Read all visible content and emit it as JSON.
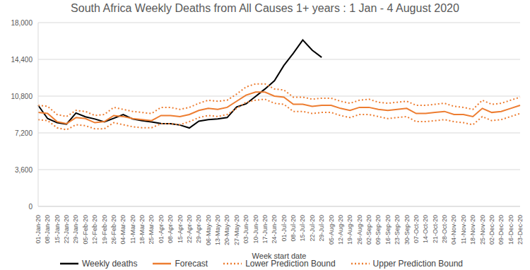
{
  "chart_data": {
    "type": "line",
    "title": "South Africa Weekly Deaths from All Causes 1+ years : 1 Jan  - 4 August 2020",
    "x_label": "Week start date",
    "categories": [
      "01-Jan-20",
      "08-Jan-20",
      "15-Jan-20",
      "22-Jan-20",
      "29-Jan-20",
      "05-Feb-20",
      "12-Feb-20",
      "19-Feb-20",
      "26-Feb-20",
      "04-Mar-20",
      "11-Mar-20",
      "18-Mar-20",
      "25-Mar-20",
      "01-Apr-20",
      "08-Apr-20",
      "15-Apr-20",
      "22-Apr-20",
      "29-Apr-20",
      "06-May-20",
      "13-May-20",
      "20-May-20",
      "27-May-20",
      "03-Jun-20",
      "10-Jun-20",
      "17-Jun-20",
      "24-Jun-20",
      "01-Jul-20",
      "08-Jul-20",
      "15-Jul-20",
      "22-Jul-20",
      "29-Jul-20",
      "05-Aug-20",
      "12-Aug-20",
      "19-Aug-20",
      "26-Aug-20",
      "02-Sep-20",
      "09-Sep-20",
      "16-Sep-20",
      "23-Sep-20",
      "30-Sep-20",
      "07-Oct-20",
      "14-Oct-20",
      "21-Oct-20",
      "28-Oct-20",
      "04-Nov-20",
      "11-Nov-20",
      "18-Nov-20",
      "25-Nov-20",
      "02-Dec-20",
      "09-Dec-20",
      "16-Dec-20",
      "23-Dec-20"
    ],
    "series": [
      {
        "name": "Weekly deaths",
        "color": "#000000",
        "line_style": "solid",
        "marker": "none",
        "values": [
          9900,
          8600,
          8200,
          8050,
          9150,
          8780,
          8560,
          8270,
          8630,
          9000,
          8560,
          8400,
          8270,
          8120,
          8100,
          7970,
          7680,
          8340,
          8490,
          8560,
          8700,
          9740,
          10040,
          10770,
          11500,
          12300,
          13800,
          15000,
          16300,
          15300,
          14600,
          null,
          null,
          null,
          null,
          null,
          null,
          null,
          null,
          null,
          null,
          null,
          null,
          null,
          null,
          null,
          null,
          null,
          null,
          null,
          null,
          null
        ]
      },
      {
        "name": "Forecast",
        "color": "#ED7D31",
        "line_style": "solid",
        "marker": "none",
        "values": [
          9200,
          9100,
          8300,
          8100,
          8700,
          8600,
          8200,
          8300,
          8900,
          8800,
          8600,
          8500,
          8400,
          8900,
          8900,
          8800,
          9000,
          9400,
          9600,
          9500,
          9700,
          10300,
          10900,
          11200,
          11200,
          10800,
          10700,
          10000,
          10000,
          9800,
          9900,
          9900,
          9600,
          9400,
          9700,
          9700,
          9500,
          9400,
          9500,
          9600,
          9100,
          9100,
          9200,
          9300,
          9000,
          9000,
          8800,
          9600,
          9200,
          9300,
          9600,
          9900
        ]
      },
      {
        "name": "Lower Prediction Bound",
        "color": "#ED7D31",
        "line_style": "dotted",
        "marker": "none",
        "values": [
          8500,
          8400,
          7700,
          7500,
          8000,
          7900,
          7600,
          7600,
          8200,
          8000,
          7800,
          7700,
          7700,
          8100,
          8100,
          8000,
          8300,
          8700,
          8900,
          8800,
          9000,
          9600,
          10200,
          10400,
          10500,
          10100,
          10000,
          9300,
          9300,
          9100,
          9200,
          9200,
          8900,
          8700,
          9000,
          9000,
          8800,
          8600,
          8700,
          8800,
          8300,
          8300,
          8400,
          8500,
          8300,
          8200,
          8000,
          8800,
          8400,
          8500,
          8800,
          9100
        ]
      },
      {
        "name": "Upper Prediction Bound",
        "color": "#ED7D31",
        "line_style": "dotted",
        "marker": "none",
        "values": [
          9900,
          9800,
          9000,
          8800,
          9400,
          9300,
          8900,
          9000,
          9700,
          9500,
          9300,
          9200,
          9100,
          9700,
          9700,
          9500,
          9700,
          10100,
          10400,
          10300,
          10400,
          11000,
          11700,
          12000,
          12000,
          11500,
          11400,
          10700,
          10700,
          10500,
          10600,
          10600,
          10300,
          10100,
          10400,
          10500,
          10200,
          10100,
          10200,
          10300,
          9900,
          9900,
          10000,
          10100,
          9800,
          9700,
          9500,
          10400,
          10000,
          10100,
          10400,
          10700
        ]
      }
    ],
    "ylim": [
      0,
      18000
    ],
    "yticks": [
      0,
      {
        "value": 3600,
        "label": "3,600"
      },
      {
        "value": 7200,
        "label": "7,200"
      },
      {
        "value": 10800,
        "label": "10,800"
      },
      {
        "value": 14400,
        "label": "14,400"
      },
      {
        "value": 18000,
        "label": "18,000"
      }
    ],
    "grid": true,
    "legend": "bottom"
  }
}
